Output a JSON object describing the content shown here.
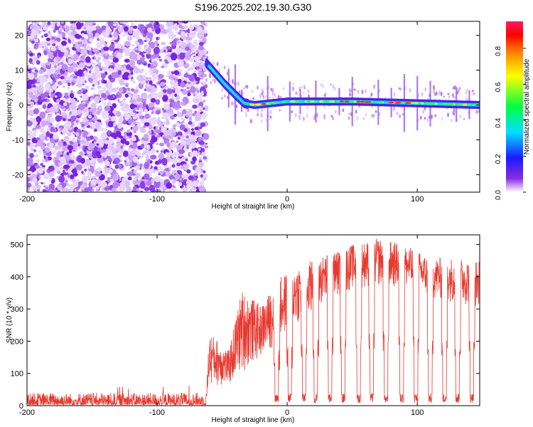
{
  "chart_data": [
    {
      "type": "heatmap",
      "title": "S196.2025.202.19.30.G30",
      "xlabel": "Height of straight line (km)",
      "ylabel": "Frequency (Hz)",
      "xlim": [
        -200,
        148
      ],
      "ylim": [
        -25,
        24
      ],
      "xticks": [
        -200,
        -100,
        0,
        100
      ],
      "yticks": [
        -20,
        -10,
        0,
        10,
        20
      ],
      "grid": false,
      "description_values": {
        "noise_region_x": [
          -200,
          -62
        ],
        "signal_track": [
          {
            "x": -62,
            "freq": 12
          },
          {
            "x": -55,
            "freq": 9
          },
          {
            "x": -48,
            "freq": 6
          },
          {
            "x": -40,
            "freq": 3
          },
          {
            "x": -33,
            "freq": 0.5
          },
          {
            "x": -25,
            "freq": 0
          },
          {
            "x": 0,
            "freq": 1
          },
          {
            "x": 50,
            "freq": 1
          },
          {
            "x": 100,
            "freq": 0.5
          },
          {
            "x": 148,
            "freq": 0
          }
        ]
      },
      "colorbar": {
        "label": "Normalized spectral amplitude",
        "range": [
          0,
          0.95
        ],
        "ticks": [
          "0.0",
          "0.2",
          "0.4",
          "0.6",
          "0.8"
        ],
        "tick_values": [
          0,
          0.2,
          0.4,
          0.6,
          0.8
        ]
      }
    },
    {
      "type": "line",
      "xlabel": "Height of straight line (km)",
      "ylabel": "SNR (10 * v/v)",
      "xlim": [
        -200,
        148
      ],
      "ylim": [
        0,
        530
      ],
      "xticks": [
        -200,
        -100,
        0,
        100
      ],
      "yticks": [
        0,
        100,
        200,
        300,
        400,
        500
      ],
      "grid": false,
      "color": "#e8392f",
      "envelope": [
        {
          "x": -200,
          "low": 2,
          "high": 40
        },
        {
          "x": -62,
          "low": 2,
          "high": 40
        },
        {
          "x": -60,
          "low": 60,
          "high": 230
        },
        {
          "x": -45,
          "low": 60,
          "high": 170
        },
        {
          "x": -35,
          "low": 100,
          "high": 360
        },
        {
          "x": -20,
          "low": 150,
          "high": 310
        },
        {
          "x": -5,
          "low": 200,
          "high": 400
        },
        {
          "x": 10,
          "low": 260,
          "high": 440
        },
        {
          "x": 30,
          "low": 320,
          "high": 470
        },
        {
          "x": 50,
          "low": 360,
          "high": 500
        },
        {
          "x": 70,
          "low": 370,
          "high": 520
        },
        {
          "x": 90,
          "low": 360,
          "high": 500
        },
        {
          "x": 110,
          "low": 330,
          "high": 460
        },
        {
          "x": 130,
          "low": 320,
          "high": 460
        },
        {
          "x": 148,
          "low": 300,
          "high": 450
        }
      ],
      "dropouts_x": [
        -8,
        2,
        13,
        22,
        33,
        43,
        55,
        65,
        76,
        88,
        99,
        110,
        121,
        131,
        142
      ]
    }
  ]
}
